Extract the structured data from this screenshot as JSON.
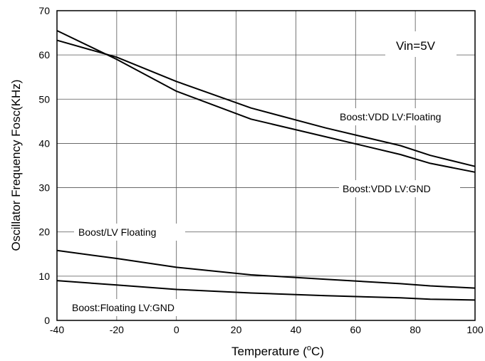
{
  "chart_data": {
    "type": "line",
    "title": "",
    "xlabel": "Temperature (°C)",
    "xlabel_parts": {
      "main": "Temperature (",
      "sup": "o",
      "unit": "C)"
    },
    "ylabel": "Oscillator Frequency Fosc(KHz)",
    "xlim": [
      -40,
      100
    ],
    "ylim": [
      0,
      70
    ],
    "x_ticks": [
      -40,
      -20,
      0,
      20,
      40,
      60,
      80,
      100
    ],
    "y_ticks": [
      0,
      10,
      20,
      30,
      40,
      50,
      60,
      70
    ],
    "x_tick_labels": [
      "-40",
      "-20",
      "0",
      "20",
      "40",
      "60",
      "80",
      "100"
    ],
    "y_tick_labels": [
      "0",
      "10",
      "20",
      "30",
      "40",
      "50",
      "60",
      "70"
    ],
    "grid": true,
    "condition_label": "Vin=5V",
    "series": [
      {
        "name": "Boost:VDD LV:Floating",
        "x": [
          -40,
          -20,
          0,
          25,
          50,
          75,
          85,
          100
        ],
        "y": [
          63.3,
          59.5,
          54,
          48,
          43.5,
          39.5,
          37.3,
          34.8
        ]
      },
      {
        "name": "Boost:VDD LV:GND",
        "x": [
          -40,
          -20,
          0,
          25,
          50,
          75,
          85,
          100
        ],
        "y": [
          65.5,
          59,
          51.8,
          45.5,
          41.5,
          37.5,
          35.5,
          33.5
        ]
      },
      {
        "name": "Boost/LV Floating",
        "x": [
          -40,
          -20,
          0,
          25,
          50,
          75,
          85,
          100
        ],
        "y": [
          15.8,
          14,
          12,
          10.3,
          9.3,
          8.3,
          7.8,
          7.3
        ]
      },
      {
        "name": "Boost:Floating LV:GND",
        "x": [
          -40,
          -20,
          0,
          25,
          50,
          75,
          85,
          100
        ],
        "y": [
          9,
          8,
          7,
          6.2,
          5.6,
          5.1,
          4.8,
          4.6
        ]
      }
    ],
    "line_color": "#000000",
    "grid_color": "#555555"
  }
}
